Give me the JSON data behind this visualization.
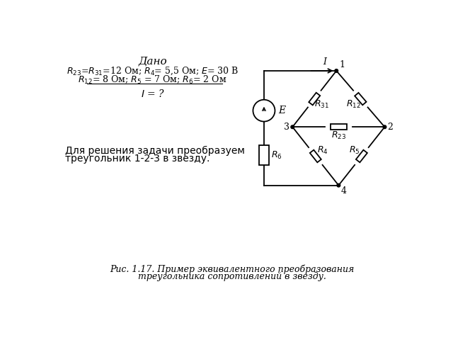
{
  "title_line1": "Рис. 1.17. Пример эквивалентного преобразования",
  "title_line2": "треугольника сопротивлений в звезду.",
  "dano_title": "Дано",
  "bottom_text_line1": "Для решения задачи преобразуем",
  "bottom_text_line2": "треугольник 1-2-3 в звезду.",
  "bg_color": "#ffffff",
  "line_color": "#000000"
}
